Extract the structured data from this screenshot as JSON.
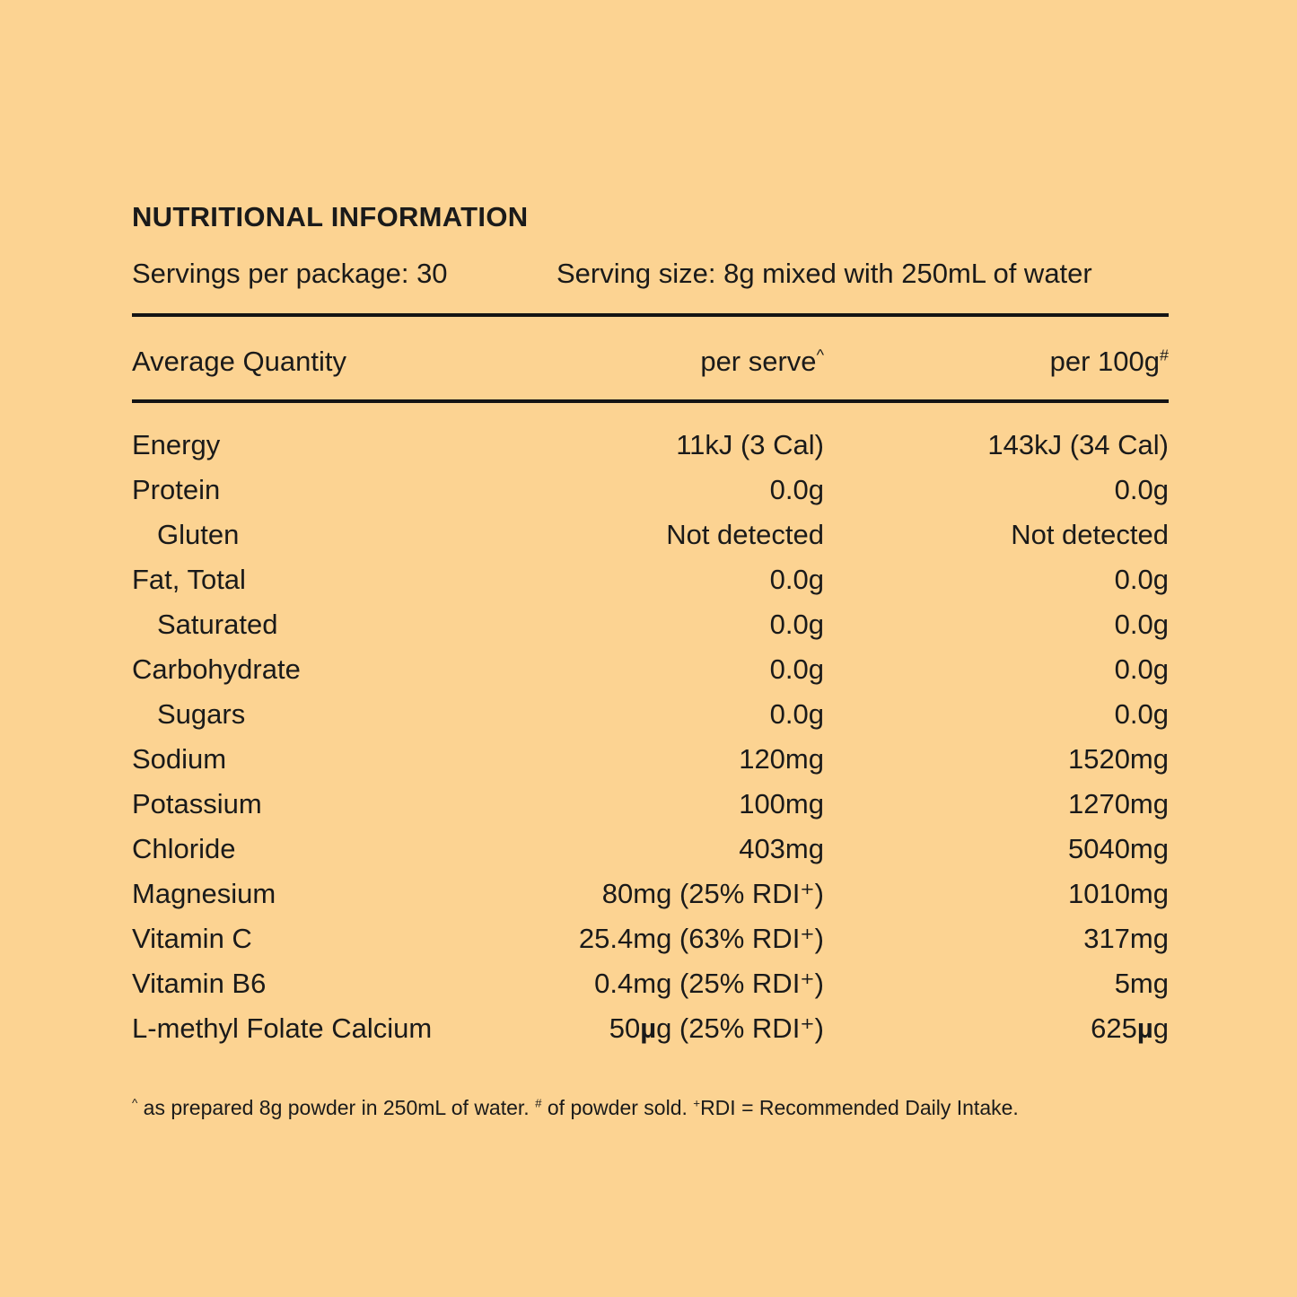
{
  "panel": {
    "title": "NUTRITIONAL INFORMATION",
    "servings_per_package": "Servings per package: 30",
    "serving_size": "Serving size: 8g mixed with 250mL of water"
  },
  "table": {
    "columns": {
      "label": "Average Quantity",
      "per_serve": "per serve",
      "per_serve_sup": "^",
      "per_100g": "per 100g",
      "per_100g_sup": "#"
    },
    "rows": [
      {
        "label": "Energy",
        "indent": false,
        "per_serve": "11kJ (3 Cal)",
        "per_100g": "143kJ (34 Cal)"
      },
      {
        "label": "Protein",
        "indent": false,
        "per_serve": "0.0g",
        "per_100g": "0.0g"
      },
      {
        "label": "Gluten",
        "indent": true,
        "per_serve": "Not detected",
        "per_100g": "Not detected"
      },
      {
        "label": "Fat, Total",
        "indent": false,
        "per_serve": "0.0g",
        "per_100g": "0.0g"
      },
      {
        "label": "Saturated",
        "indent": true,
        "per_serve": "0.0g",
        "per_100g": "0.0g"
      },
      {
        "label": "Carbohydrate",
        "indent": false,
        "per_serve": "0.0g",
        "per_100g": "0.0g"
      },
      {
        "label": "Sugars",
        "indent": true,
        "per_serve": "0.0g",
        "per_100g": "0.0g"
      },
      {
        "label": "Sodium",
        "indent": false,
        "per_serve": "120mg",
        "per_100g": "1520mg"
      },
      {
        "label": "Potassium",
        "indent": false,
        "per_serve": "100mg",
        "per_100g": "1270mg"
      },
      {
        "label": "Chloride",
        "indent": false,
        "per_serve": "403mg",
        "per_100g": "5040mg"
      },
      {
        "label": "Magnesium",
        "indent": false,
        "per_serve": "80mg (25% RDI⁺)",
        "per_100g": "1010mg"
      },
      {
        "label": "Vitamin C",
        "indent": false,
        "per_serve": "25.4mg (63% RDI⁺)",
        "per_100g": "317mg"
      },
      {
        "label": "Vitamin B6",
        "indent": false,
        "per_serve": "0.4mg (25% RDI⁺)",
        "per_100g": "5mg"
      },
      {
        "label": "L-methyl Folate Calcium",
        "indent": false,
        "per_serve": "50µg (25% RDI⁺)",
        "per_100g": "625µg"
      }
    ]
  },
  "footnote": {
    "part1_sup": "^",
    "part1": " as prepared 8g powder in 250mL of water. ",
    "part2_sup": "#",
    "part2": " of powder sold. ",
    "part3_sup": "+",
    "part3": "RDI = Recommended Daily Intake."
  },
  "colors": {
    "background": "#FCD392",
    "text": "#1A1A1A",
    "rule": "#141414"
  }
}
